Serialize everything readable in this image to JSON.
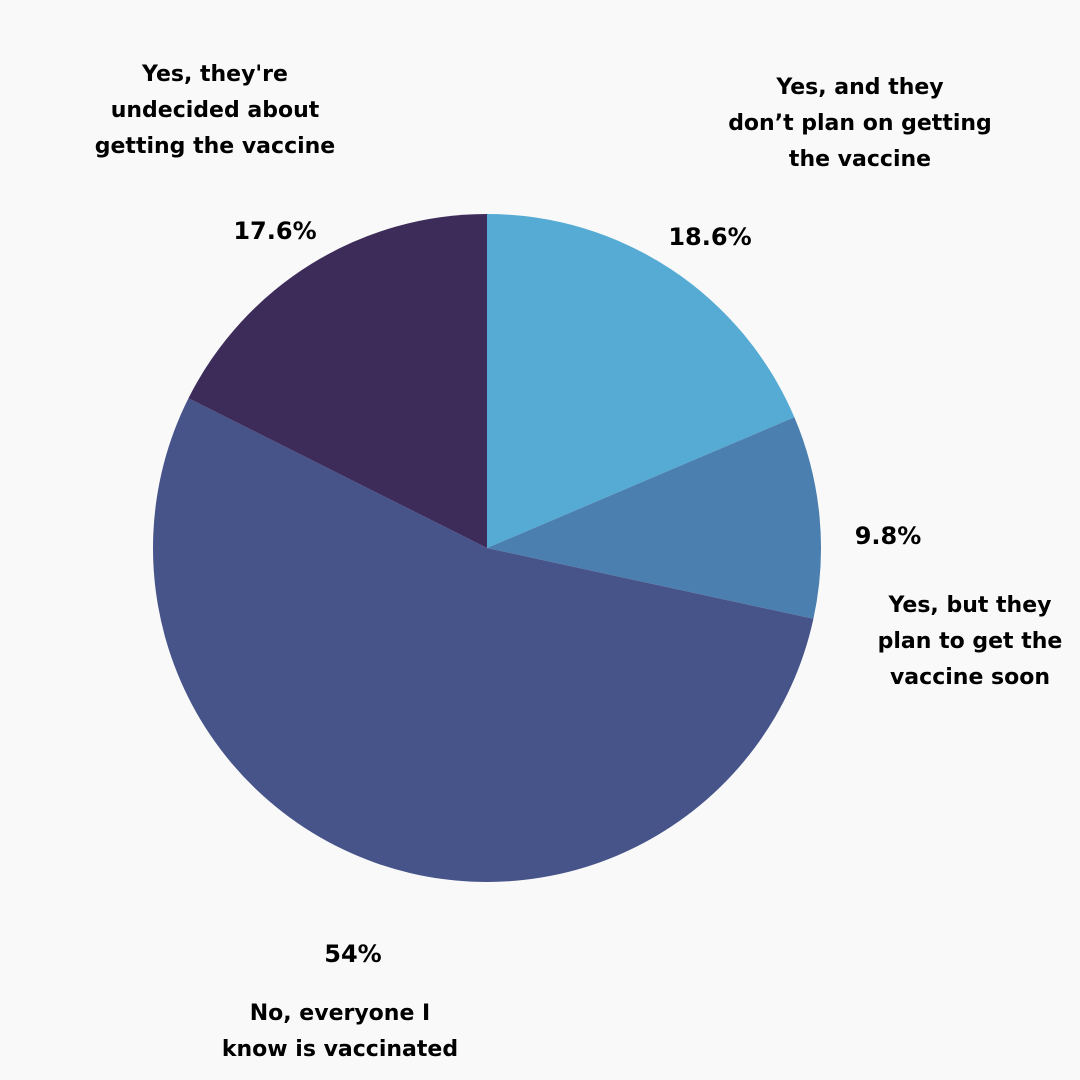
{
  "chart_data": {
    "type": "pie",
    "slices": [
      {
        "label": "Yes, and they\ndon’t plan on getting\nthe vaccine",
        "value": 18.6,
        "value_label": "18.6%",
        "color": "#55abd3"
      },
      {
        "label": "Yes, but they\nplan to get the\nvaccine soon",
        "value": 9.8,
        "value_label": "9.8%",
        "color": "#4a7fb0"
      },
      {
        "label": "No, everyone I\nknow is vaccinated",
        "value": 54,
        "value_label": "54%",
        "color": "#46548a"
      },
      {
        "label": "Yes, they're\nundecided about\ngetting the vaccine",
        "value": 17.6,
        "value_label": "17.6%",
        "color": "#3d2b59"
      }
    ],
    "start": "12 o'clock",
    "direction": "clockwise"
  }
}
